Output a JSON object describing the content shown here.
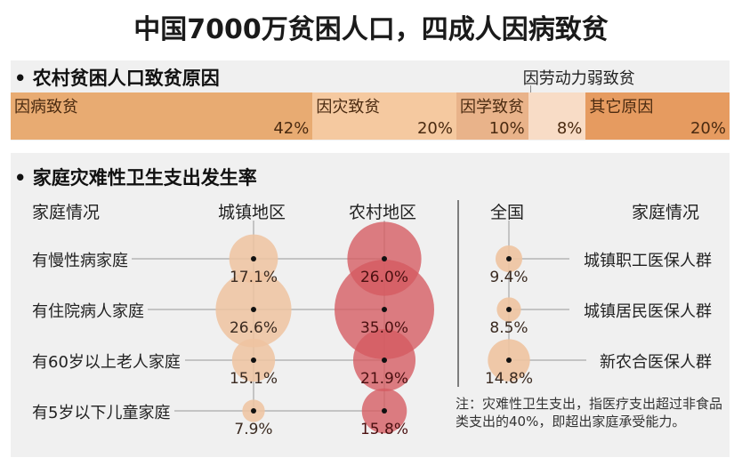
{
  "title": "中国7000万贫困人口，四成人因病致贫",
  "chart_data": [
    {
      "type": "bar",
      "stacked": "100%",
      "title": "• 农村贫困人口致贫原因",
      "categories": [
        "因病致贫",
        "因灾致贫",
        "因学致贫",
        "因劳动力弱致贫",
        "其它原因"
      ],
      "values": [
        42,
        20,
        10,
        8,
        20
      ],
      "value_labels": [
        "42%",
        "20%",
        "10%",
        "8%",
        "20%"
      ],
      "colors": [
        "#e8ab72",
        "#f5c9a0",
        "#e9b38a",
        "#f8dcc6",
        "#e69b60"
      ]
    },
    {
      "type": "scatter",
      "subtype": "bubble",
      "title": "• 家庭灾难性卫生支出发生率",
      "row_header": "家庭情况",
      "columns": [
        "城镇地区",
        "农村地区"
      ],
      "rows": [
        "有慢性病家庭",
        "有住院病人家庭",
        "有60岁以上老人家庭",
        "有5岁以下儿童家庭"
      ],
      "series": [
        {
          "name": "城镇地区",
          "values": [
            17.1,
            26.6,
            15.1,
            7.9
          ],
          "labels": [
            "17.1%",
            "26.6%",
            "15.1%",
            "7.9%"
          ],
          "color": "#eec3a0"
        },
        {
          "name": "农村地区",
          "values": [
            26.0,
            35.0,
            21.9,
            15.8
          ],
          "labels": [
            "26.0%",
            "35.0%",
            "21.9%",
            "15.8%"
          ],
          "color": "#d55a60"
        }
      ]
    },
    {
      "type": "scatter",
      "subtype": "bubble",
      "column": "全国",
      "row_header": "家庭情况",
      "rows": [
        "城镇职工医保人群",
        "城镇居民医保人群",
        "新农合医保人群"
      ],
      "values": [
        9.4,
        8.5,
        14.8
      ],
      "labels": [
        "9.4%",
        "8.5%",
        "14.8%"
      ],
      "color": "#eec3a0"
    }
  ],
  "note": "注：灾难性卫生支出，指医疗支出超过非食品类支出的40%，即超出家庭承受能力。"
}
